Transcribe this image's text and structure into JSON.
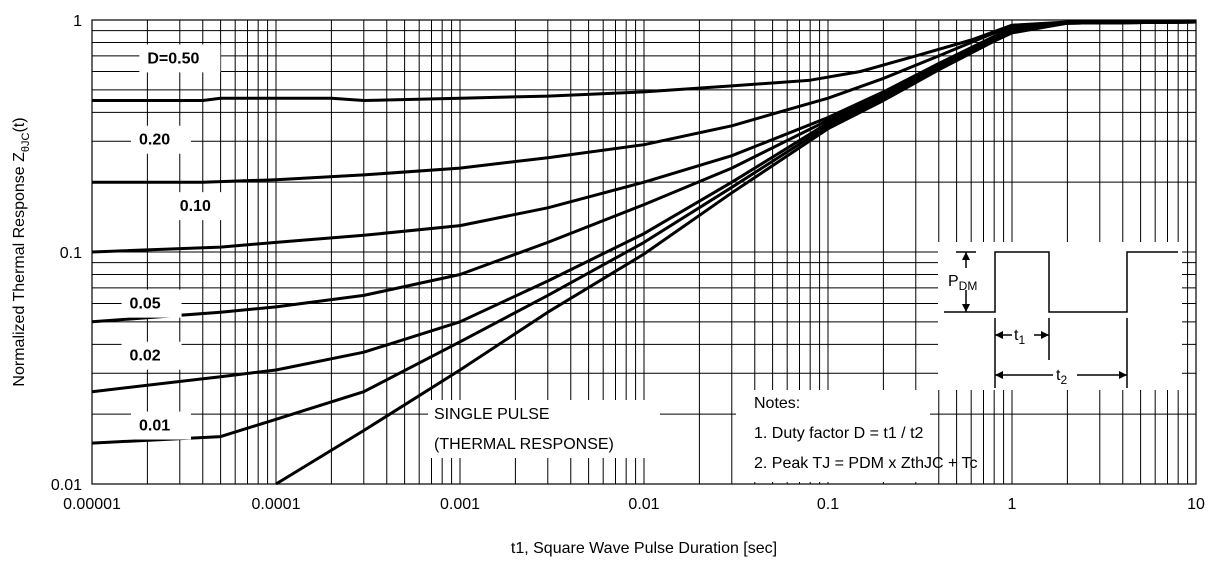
{
  "chart_data": {
    "type": "line",
    "title": "",
    "xlabel": "t1, Square Wave Pulse Duration [sec]",
    "ylabel_main": "Normalized Thermal Response Z",
    "ylabel_sub": "θJC",
    "ylabel_suffix": "(t)",
    "xscale": "log",
    "yscale": "log",
    "xlim": [
      1e-05,
      10
    ],
    "ylim": [
      0.01,
      1
    ],
    "grid": true,
    "x_ticks": [
      {
        "value": 1e-05,
        "label": "0.00001"
      },
      {
        "value": 0.0001,
        "label": "0.0001"
      },
      {
        "value": 0.001,
        "label": "0.001"
      },
      {
        "value": 0.01,
        "label": "0.01"
      },
      {
        "value": 0.1,
        "label": "0.1"
      },
      {
        "value": 1,
        "label": "1"
      },
      {
        "value": 10,
        "label": "10"
      }
    ],
    "y_ticks": [
      {
        "value": 0.01,
        "label": "0.01"
      },
      {
        "value": 0.1,
        "label": "0.1"
      },
      {
        "value": 1,
        "label": "1"
      }
    ],
    "series": [
      {
        "name": "D=0.50",
        "x": [
          1e-05,
          4e-05,
          5e-05,
          0.0002,
          0.0003,
          0.001,
          0.003,
          0.01,
          0.03,
          0.08,
          0.15,
          0.3,
          0.6,
          1,
          2,
          10
        ],
        "y": [
          0.45,
          0.45,
          0.46,
          0.46,
          0.45,
          0.46,
          0.47,
          0.49,
          0.52,
          0.55,
          0.6,
          0.7,
          0.82,
          0.95,
          0.98,
          0.98
        ]
      },
      {
        "name": "0.20",
        "x": [
          1e-05,
          4e-05,
          0.0001,
          0.0003,
          0.001,
          0.003,
          0.01,
          0.03,
          0.06,
          0.1,
          0.2,
          0.4,
          0.8,
          1,
          2,
          10
        ],
        "y": [
          0.2,
          0.2,
          0.205,
          0.215,
          0.23,
          0.255,
          0.29,
          0.35,
          0.41,
          0.46,
          0.56,
          0.7,
          0.88,
          0.93,
          0.97,
          0.98
        ]
      },
      {
        "name": "0.10",
        "x": [
          1e-05,
          5e-05,
          0.0001,
          0.0003,
          0.001,
          0.003,
          0.01,
          0.03,
          0.1,
          0.2,
          0.4,
          0.8,
          1,
          2,
          10
        ],
        "y": [
          0.1,
          0.105,
          0.11,
          0.118,
          0.13,
          0.155,
          0.2,
          0.26,
          0.38,
          0.49,
          0.65,
          0.85,
          0.92,
          0.97,
          0.98
        ]
      },
      {
        "name": "0.05",
        "x": [
          1e-05,
          5e-05,
          0.0001,
          0.0003,
          0.001,
          0.003,
          0.01,
          0.03,
          0.1,
          0.2,
          0.4,
          0.8,
          1,
          2,
          10
        ],
        "y": [
          0.05,
          0.055,
          0.058,
          0.065,
          0.08,
          0.11,
          0.16,
          0.23,
          0.37,
          0.48,
          0.64,
          0.84,
          0.91,
          0.97,
          0.98
        ]
      },
      {
        "name": "0.02",
        "x": [
          1e-05,
          5e-05,
          0.0001,
          0.0003,
          0.001,
          0.003,
          0.01,
          0.03,
          0.1,
          0.2,
          0.4,
          0.8,
          1,
          2,
          10
        ],
        "y": [
          0.025,
          0.029,
          0.031,
          0.037,
          0.05,
          0.075,
          0.12,
          0.2,
          0.36,
          0.47,
          0.63,
          0.83,
          0.9,
          0.97,
          0.98
        ]
      },
      {
        "name": "0.01",
        "x": [
          1e-05,
          5e-05,
          0.0001,
          0.0003,
          0.001,
          0.003,
          0.01,
          0.03,
          0.1,
          0.2,
          0.4,
          0.8,
          1,
          2,
          10
        ],
        "y": [
          0.015,
          0.016,
          0.019,
          0.025,
          0.041,
          0.065,
          0.11,
          0.19,
          0.35,
          0.46,
          0.62,
          0.82,
          0.89,
          0.97,
          0.98
        ]
      },
      {
        "name": "SINGLE PULSE",
        "x": [
          0.0001,
          0.0003,
          0.001,
          0.003,
          0.01,
          0.03,
          0.1,
          0.2,
          0.4,
          0.8,
          1,
          2,
          10
        ],
        "y": [
          0.01,
          0.017,
          0.031,
          0.055,
          0.098,
          0.18,
          0.34,
          0.45,
          0.61,
          0.81,
          0.88,
          0.97,
          0.98
        ]
      }
    ],
    "series_labels": [
      {
        "text": "D=0.50",
        "x": 2e-05,
        "y": 0.65
      },
      {
        "text": "0.20",
        "x": 1.8e-05,
        "y": 0.29
      },
      {
        "text": "0.10",
        "x": 3e-05,
        "y": 0.15
      },
      {
        "text": "0.05",
        "x": 1.6e-05,
        "y": 0.057
      },
      {
        "text": "0.02",
        "x": 1.6e-05,
        "y": 0.034
      },
      {
        "text": "0.01",
        "x": 1.8e-05,
        "y": 0.017
      }
    ],
    "single_pulse_label": [
      "SINGLE PULSE",
      "(THERMAL RESPONSE)"
    ],
    "notes": {
      "title": "Notes:",
      "lines": [
        "1. Duty factor D = t1 / t2",
        "2. Peak TJ = PDM x ZthJC + Tc"
      ]
    },
    "waveform": {
      "pdm_main": "P",
      "pdm_sub": "DM",
      "t1_main": "t",
      "t1_sub": "1",
      "t2_main": "t",
      "t2_sub": "2"
    }
  }
}
